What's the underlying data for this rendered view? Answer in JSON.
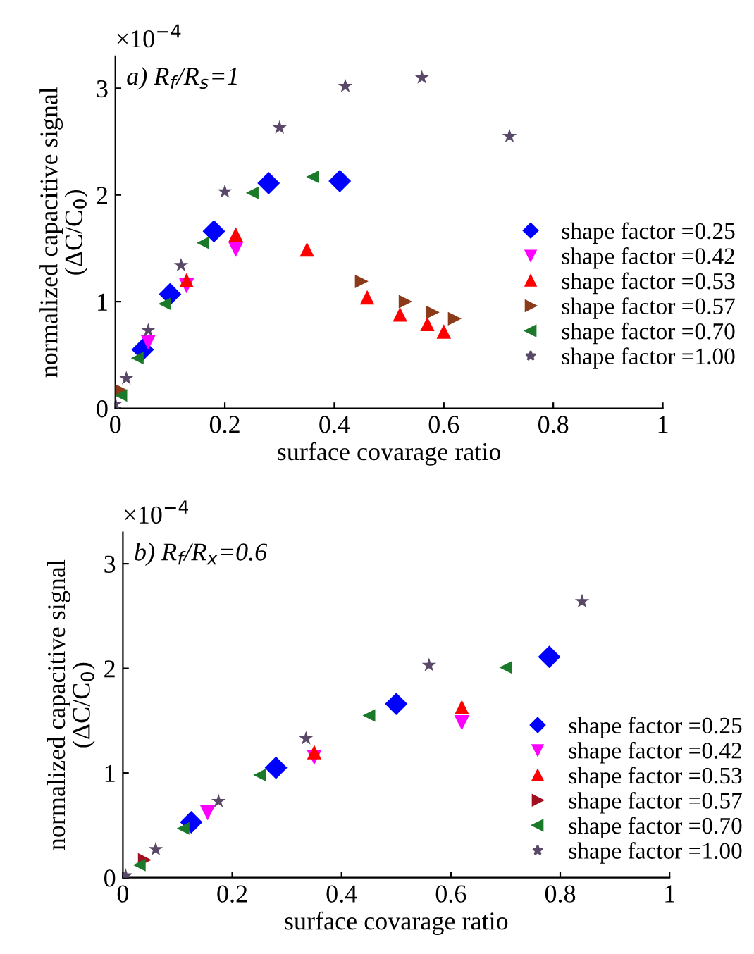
{
  "chart_data": [
    {
      "type": "scatter",
      "xlabel": "surface covarage ratio",
      "ylabel": "normalized capacitive signal\n(ΔC/C$_{0}$)",
      "annotations": [
        "×10$^{−4}$",
        "a) R$_{f}$/R$_{s}$=1"
      ],
      "xlim": [
        0,
        1
      ],
      "xticks": [
        0,
        0.2,
        0.4,
        0.6,
        0.8,
        1
      ],
      "ylim": [
        0,
        3.3
      ],
      "yticks": [
        0,
        1,
        2,
        3
      ],
      "legend": "right",
      "grid": false,
      "series": [
        {
          "name": "shape factor =0.25",
          "color": "#0000ff",
          "marker": "diamond",
          "x": [
            0.05,
            0.1,
            0.18,
            0.28,
            0.41
          ],
          "values": [
            0.55,
            1.07,
            1.66,
            2.11,
            2.13
          ]
        },
        {
          "name": "shape factor =0.42",
          "color": "#ff00ff",
          "marker": "triangle_down",
          "x": [
            0.06,
            0.13,
            0.22
          ],
          "values": [
            0.62,
            1.15,
            1.49
          ]
        },
        {
          "name": "shape factor =0.53",
          "color": "#ff0000",
          "marker": "triangle",
          "x": [
            0.13,
            0.22,
            0.35,
            0.46,
            0.52,
            0.57,
            0.6
          ],
          "values": [
            1.2,
            1.63,
            1.49,
            1.04,
            0.88,
            0.79,
            0.72
          ]
        },
        {
          "name": "shape factor =0.57",
          "color": "#8b3a1a",
          "marker": "triangle_right",
          "x": [
            0.01,
            0.45,
            0.53,
            0.58,
            0.62
          ],
          "values": [
            0.17,
            1.19,
            1.0,
            0.9,
            0.84
          ]
        },
        {
          "name": "shape factor =0.70",
          "color": "#1a7a2a",
          "marker": "triangle_left",
          "x": [
            0.01,
            0.04,
            0.09,
            0.16,
            0.25,
            0.36
          ],
          "values": [
            0.12,
            0.47,
            0.98,
            1.55,
            2.02,
            2.17
          ]
        },
        {
          "name": "shape factor =1.00",
          "color": "#5a4868",
          "marker": "star",
          "x": [
            0.0,
            0.02,
            0.06,
            0.12,
            0.2,
            0.3,
            0.42,
            0.56,
            0.72
          ],
          "values": [
            0.04,
            0.28,
            0.73,
            1.34,
            2.03,
            2.63,
            3.02,
            3.1,
            2.55
          ]
        }
      ]
    },
    {
      "type": "scatter",
      "xlabel": "surface covarage ratio",
      "ylabel": "normalized capacitive signal\n(ΔC/C$_{0}$)",
      "annotations": [
        "×10$^{−4}$",
        "b) R$_{f}$/R$_{x}$=0.6"
      ],
      "xlim": [
        0,
        1
      ],
      "xticks": [
        0,
        0.2,
        0.4,
        0.6,
        0.8,
        1
      ],
      "ylim": [
        0,
        3.3
      ],
      "yticks": [
        0,
        1,
        2,
        3
      ],
      "legend": "bottom right",
      "grid": false,
      "series": [
        {
          "name": "shape factor =0.25",
          "color": "#0000ff",
          "marker": "diamond",
          "x": [
            0.125,
            0.28,
            0.5,
            0.78
          ],
          "values": [
            0.53,
            1.05,
            1.66,
            2.11
          ]
        },
        {
          "name": "shape factor =0.42",
          "color": "#ff00ff",
          "marker": "triangle_down",
          "x": [
            0.155,
            0.35,
            0.62
          ],
          "values": [
            0.62,
            1.15,
            1.48
          ]
        },
        {
          "name": "shape factor =0.53",
          "color": "#ff0000",
          "marker": "triangle",
          "x": [
            0.35,
            0.62
          ],
          "values": [
            1.2,
            1.63
          ]
        },
        {
          "name": "shape factor =0.57",
          "color": "#a01020",
          "marker": "triangle_right",
          "x": [
            0.04
          ],
          "values": [
            0.17
          ]
        },
        {
          "name": "shape factor =0.70",
          "color": "#1a7a2a",
          "marker": "triangle_left",
          "x": [
            0.03,
            0.11,
            0.25,
            0.45,
            0.7
          ],
          "values": [
            0.12,
            0.47,
            0.98,
            1.55,
            2.01
          ]
        },
        {
          "name": "shape factor =1.00",
          "color": "#5a4868",
          "marker": "star",
          "x": [
            0.005,
            0.06,
            0.175,
            0.335,
            0.56,
            0.84
          ],
          "values": [
            0.02,
            0.27,
            0.73,
            1.33,
            2.03,
            2.64
          ]
        }
      ]
    }
  ]
}
